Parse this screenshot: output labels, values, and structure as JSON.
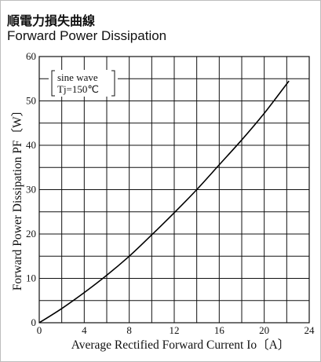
{
  "header": {
    "title_jp": "順電力損失曲線",
    "title_en": "Forward Power Dissipation"
  },
  "chart_data": {
    "type": "line",
    "title": "Forward Power Dissipation",
    "xlabel": "Average Rectified Forward Current Io〔A〕",
    "ylabel": "Forward Power Dissipation PF〔W〕",
    "xlim": [
      0,
      24
    ],
    "ylim": [
      0,
      60
    ],
    "x_ticks": [
      0,
      4,
      8,
      12,
      16,
      20,
      24
    ],
    "y_ticks": [
      0,
      10,
      20,
      30,
      40,
      50,
      60
    ],
    "x_tick_labels": [
      "0",
      "4",
      "8",
      "12",
      "16",
      "20",
      "24"
    ],
    "y_tick_labels": [
      "0",
      "10",
      "20",
      "30",
      "40",
      "50",
      "60"
    ],
    "grid": true,
    "annotation": {
      "line1": "sine wave",
      "line2": "Tj=150℃"
    },
    "series": [
      {
        "x": [
          0,
          2,
          4,
          6,
          8,
          10,
          12,
          14,
          16,
          18,
          20,
          22.2
        ],
        "y": [
          0,
          3.2,
          6.8,
          10.7,
          15.0,
          19.8,
          24.8,
          30.0,
          35.6,
          41.2,
          47.2,
          54.5
        ]
      }
    ],
    "color": "#000000"
  }
}
